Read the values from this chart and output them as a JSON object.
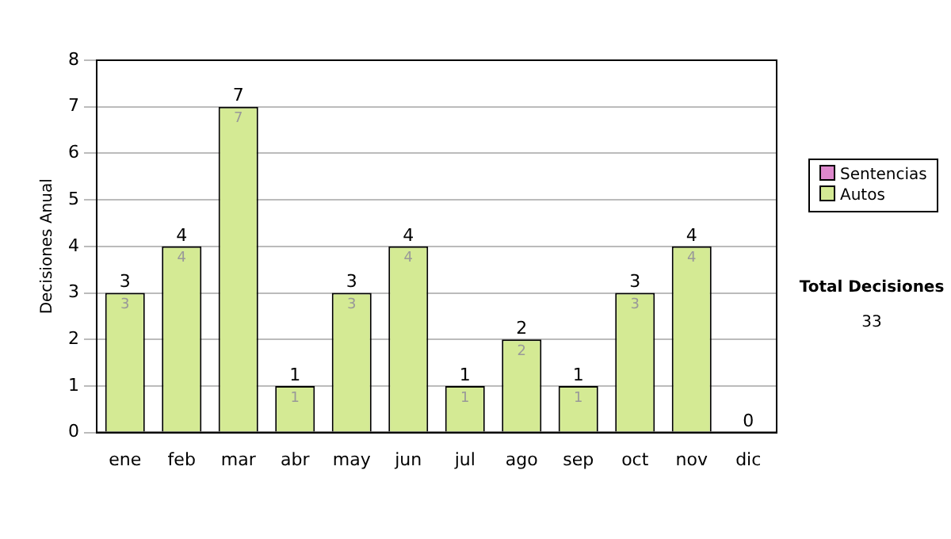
{
  "chart_data": {
    "type": "bar",
    "stacked": true,
    "ylabel": "Decisiones Anual",
    "categories": [
      "ene",
      "feb",
      "mar",
      "abr",
      "may",
      "jun",
      "jul",
      "ago",
      "sep",
      "oct",
      "nov",
      "dic"
    ],
    "series": [
      {
        "name": "Sentencias",
        "color": "#dd88cc",
        "values": [
          0,
          0,
          0,
          0,
          0,
          0,
          0,
          0,
          0,
          0,
          0,
          0
        ]
      },
      {
        "name": "Autos",
        "color": "#d4ea94",
        "values": [
          3,
          4,
          7,
          1,
          3,
          4,
          1,
          2,
          1,
          3,
          4,
          0
        ],
        "value_labels": [
          "3",
          "4",
          "7",
          "1",
          "3",
          "4",
          "1",
          "2",
          "1",
          "3",
          "4",
          null
        ]
      }
    ],
    "totals": [
      "3",
      "4",
      "7",
      "1",
      "3",
      "4",
      "1",
      "2",
      "1",
      "3",
      "4",
      "0"
    ],
    "ylim": [
      0,
      8
    ],
    "yticks": [
      0,
      1,
      2,
      3,
      4,
      5,
      6,
      7,
      8
    ],
    "grid": "y",
    "legend": "right",
    "annotations": [
      "Total Decisiones",
      "33"
    ]
  }
}
